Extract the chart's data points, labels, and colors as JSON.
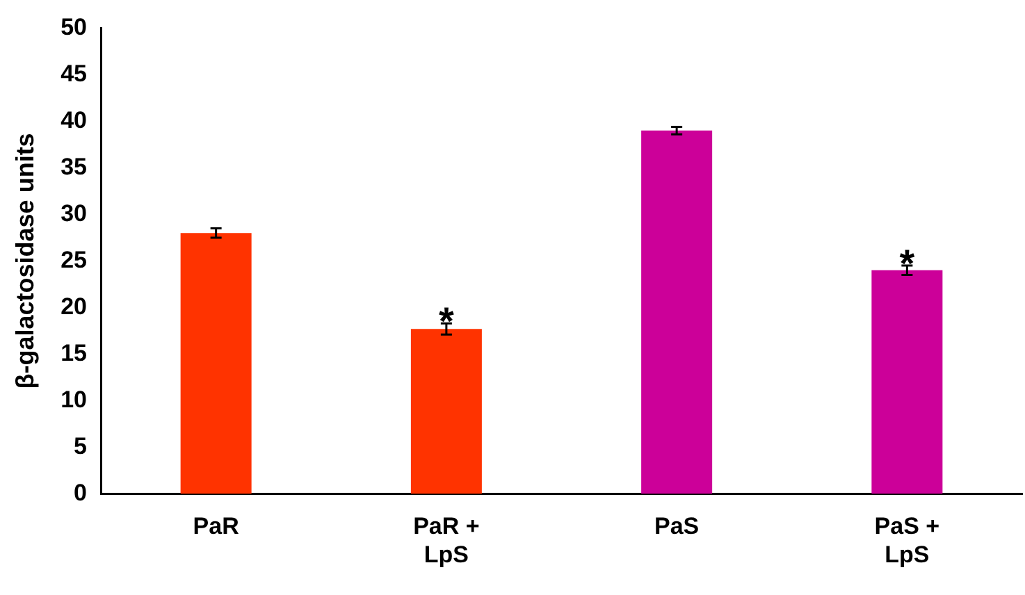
{
  "chart_data": {
    "type": "bar",
    "ylabel": "β-galactosidase units",
    "categories": [
      "PaR",
      "PaR + LpS",
      "PaS",
      "PaS + LpS"
    ],
    "values": [
      28,
      17.7,
      39,
      24
    ],
    "colors": [
      "#ff3300",
      "#ff3300",
      "#cc0099",
      "#cc0099"
    ],
    "errors": [
      0.5,
      0.6,
      0.4,
      0.5
    ],
    "ylim": [
      0,
      50
    ],
    "yticks": [
      0,
      5,
      10,
      15,
      20,
      25,
      30,
      35,
      40,
      45,
      50
    ],
    "grid": false,
    "legend": false,
    "annotations": [
      {
        "text": "*",
        "x": "PaR + LpS",
        "y": 18.3
      },
      {
        "text": "*",
        "x": "PaS + LpS",
        "y": 24.5
      }
    ]
  }
}
